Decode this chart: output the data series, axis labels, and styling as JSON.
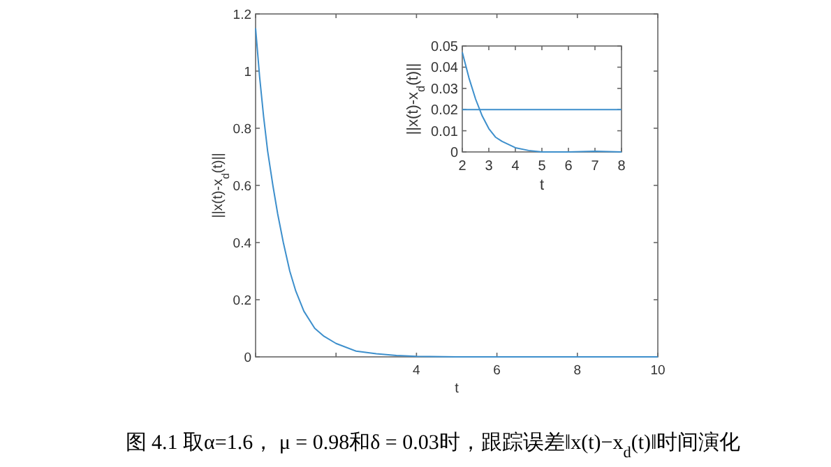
{
  "chart_data": [
    {
      "type": "line",
      "xlabel": "t",
      "ylabel": "||x(t)-x$_{d}$(t)||",
      "xlim": [
        0,
        10
      ],
      "ylim": [
        0,
        1.2
      ],
      "xticks": [
        {
          "value": 0,
          "label": null
        },
        {
          "value": 2,
          "label": null
        },
        4,
        6,
        8,
        10
      ],
      "yticks": [
        0,
        0.2,
        0.4,
        0.6,
        0.8,
        1,
        1.2
      ],
      "series": [
        {
          "color": "#3d8fcc",
          "x": [
            0,
            0.1,
            0.2,
            0.3,
            0.43,
            0.55,
            0.69,
            0.85,
            1.0,
            1.2,
            1.47,
            1.7,
            2,
            2.5,
            3,
            3.5,
            4,
            5,
            6,
            8,
            10
          ],
          "values": [
            1.15,
            0.98,
            0.84,
            0.72,
            0.6,
            0.5,
            0.4,
            0.3,
            0.23,
            0.16,
            0.1,
            0.072,
            0.047,
            0.02,
            0.011,
            0.005,
            0.002,
            0,
            0,
            0,
            0
          ]
        }
      ],
      "annotations": [
        "图 4.1 取α=1.6， μ = 0.98和δ = 0.03时，跟踪误差‖x(t)−x$_{d}$(t)‖时间演化"
      ]
    },
    {
      "type": "line",
      "xlabel": "t",
      "ylabel": "||x(t)-x$_{d}$(t)||",
      "xlim": [
        2,
        8
      ],
      "ylim": [
        0,
        0.05
      ],
      "xticks": [
        2,
        3,
        4,
        5,
        6,
        7,
        8
      ],
      "yticks": [
        0,
        0.01,
        0.02,
        0.03,
        0.04,
        0.05
      ],
      "series": [
        {
          "color": "#3d8fcc",
          "x": [
            2,
            2.25,
            2.5,
            2.75,
            3,
            3.25,
            3.5,
            4,
            4.5,
            5,
            6,
            7,
            8
          ],
          "values": [
            0.047,
            0.035,
            0.025,
            0.017,
            0.011,
            0.007,
            0.005,
            0.002,
            0.0007,
            0,
            0,
            0.0003,
            0
          ]
        }
      ],
      "ref_lines": [
        {
          "axis": "y",
          "value": 0.02,
          "color": "#3d8fcc"
        }
      ]
    }
  ]
}
